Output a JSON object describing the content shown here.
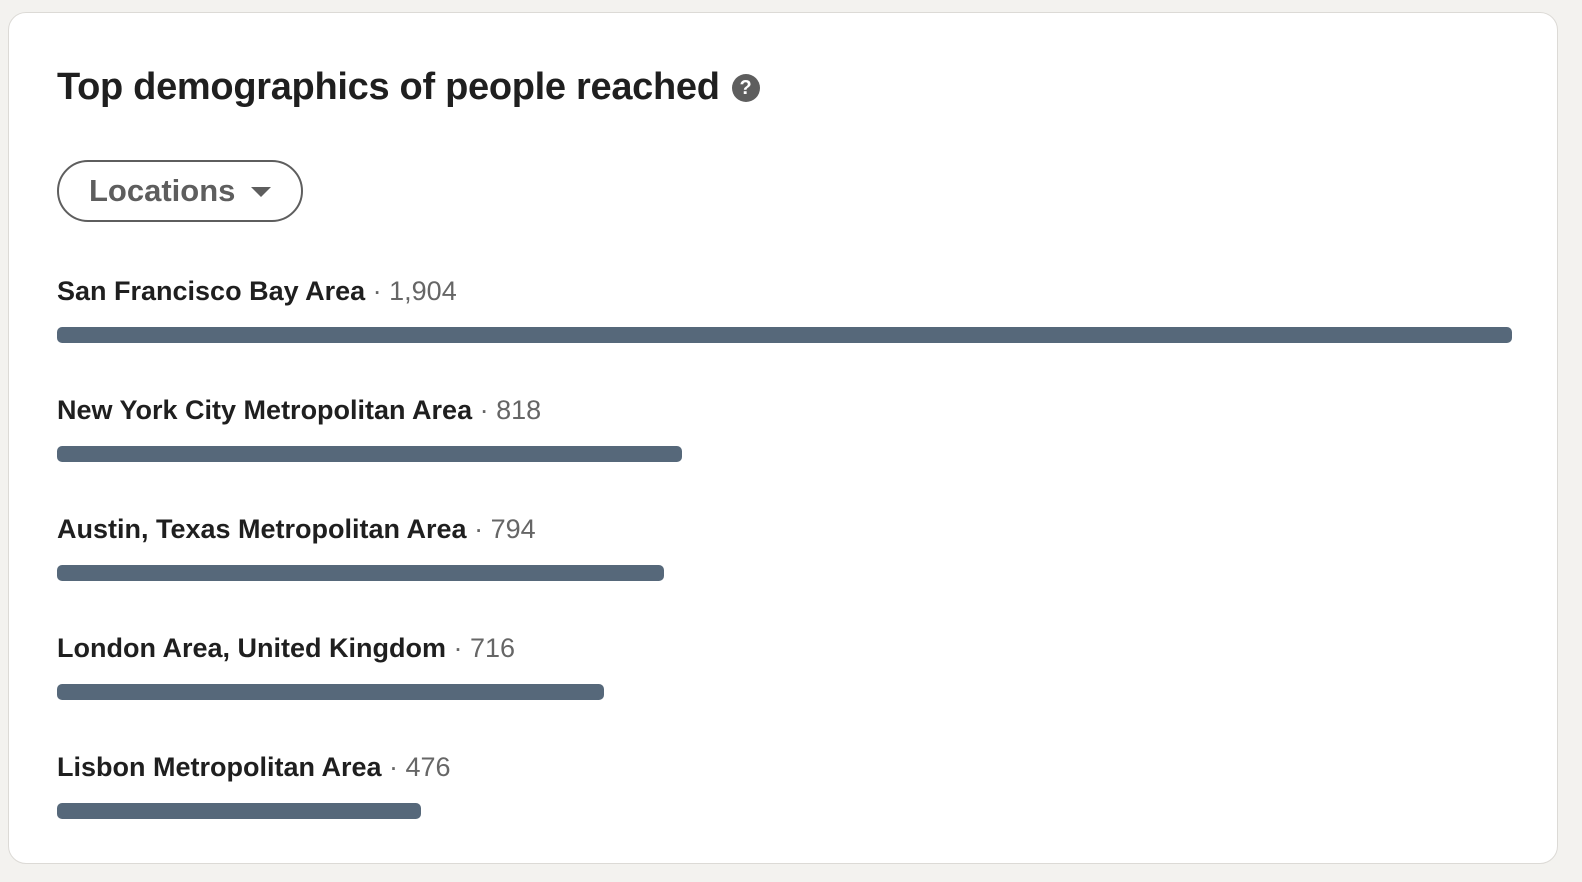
{
  "card": {
    "title": "Top demographics of people reached",
    "help_icon": "question-circle-icon",
    "help_glyph": "?"
  },
  "filter": {
    "selected": "Locations",
    "caret_icon": "caret-down-icon"
  },
  "separator": " · ",
  "bar_color": "#56687a",
  "rows": [
    {
      "name": "San Francisco Bay Area",
      "count": "1,904",
      "value": 1904
    },
    {
      "name": "New York City Metropolitan Area",
      "count": "818",
      "value": 818
    },
    {
      "name": "Austin, Texas Metropolitan Area",
      "count": "794",
      "value": 794
    },
    {
      "name": "London Area, United Kingdom",
      "count": "716",
      "value": 716
    },
    {
      "name": "Lisbon Metropolitan Area",
      "count": "476",
      "value": 476
    }
  ]
}
